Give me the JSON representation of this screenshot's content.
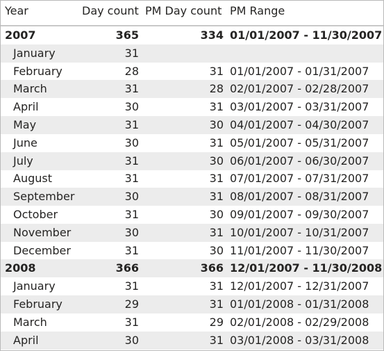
{
  "headers": {
    "year": "Year",
    "day_count": "Day count",
    "pm_day_count": "PM Day count",
    "pm_range": "PM Range"
  },
  "rows": [
    {
      "kind": "group",
      "label": "2007",
      "day_count": "365",
      "pm_day_count": "334",
      "pm_range": "01/01/2007 - 11/30/2007"
    },
    {
      "kind": "month",
      "label": "January",
      "day_count": "31",
      "pm_day_count": "",
      "pm_range": ""
    },
    {
      "kind": "month",
      "label": "February",
      "day_count": "28",
      "pm_day_count": "31",
      "pm_range": "01/01/2007 - 01/31/2007"
    },
    {
      "kind": "month",
      "label": "March",
      "day_count": "31",
      "pm_day_count": "28",
      "pm_range": "02/01/2007 - 02/28/2007"
    },
    {
      "kind": "month",
      "label": "April",
      "day_count": "30",
      "pm_day_count": "31",
      "pm_range": "03/01/2007 - 03/31/2007"
    },
    {
      "kind": "month",
      "label": "May",
      "day_count": "31",
      "pm_day_count": "30",
      "pm_range": "04/01/2007 - 04/30/2007"
    },
    {
      "kind": "month",
      "label": "June",
      "day_count": "30",
      "pm_day_count": "31",
      "pm_range": "05/01/2007 - 05/31/2007"
    },
    {
      "kind": "month",
      "label": "July",
      "day_count": "31",
      "pm_day_count": "30",
      "pm_range": "06/01/2007 - 06/30/2007"
    },
    {
      "kind": "month",
      "label": "August",
      "day_count": "31",
      "pm_day_count": "31",
      "pm_range": "07/01/2007 - 07/31/2007"
    },
    {
      "kind": "month",
      "label": "September",
      "day_count": "30",
      "pm_day_count": "31",
      "pm_range": "08/01/2007 - 08/31/2007"
    },
    {
      "kind": "month",
      "label": "October",
      "day_count": "31",
      "pm_day_count": "30",
      "pm_range": "09/01/2007 - 09/30/2007"
    },
    {
      "kind": "month",
      "label": "November",
      "day_count": "30",
      "pm_day_count": "31",
      "pm_range": "10/01/2007 - 10/31/2007"
    },
    {
      "kind": "month",
      "label": "December",
      "day_count": "31",
      "pm_day_count": "30",
      "pm_range": "11/01/2007 - 11/30/2007"
    },
    {
      "kind": "group",
      "label": "2008",
      "day_count": "366",
      "pm_day_count": "366",
      "pm_range": "12/01/2007 - 11/30/2008"
    },
    {
      "kind": "month",
      "label": "January",
      "day_count": "31",
      "pm_day_count": "31",
      "pm_range": "12/01/2007 - 12/31/2007"
    },
    {
      "kind": "month",
      "label": "February",
      "day_count": "29",
      "pm_day_count": "31",
      "pm_range": "01/01/2008 - 01/31/2008"
    },
    {
      "kind": "month",
      "label": "March",
      "day_count": "31",
      "pm_day_count": "29",
      "pm_range": "02/01/2008 - 02/29/2008"
    },
    {
      "kind": "month",
      "label": "April",
      "day_count": "30",
      "pm_day_count": "31",
      "pm_range": "03/01/2008 - 03/31/2008"
    }
  ]
}
